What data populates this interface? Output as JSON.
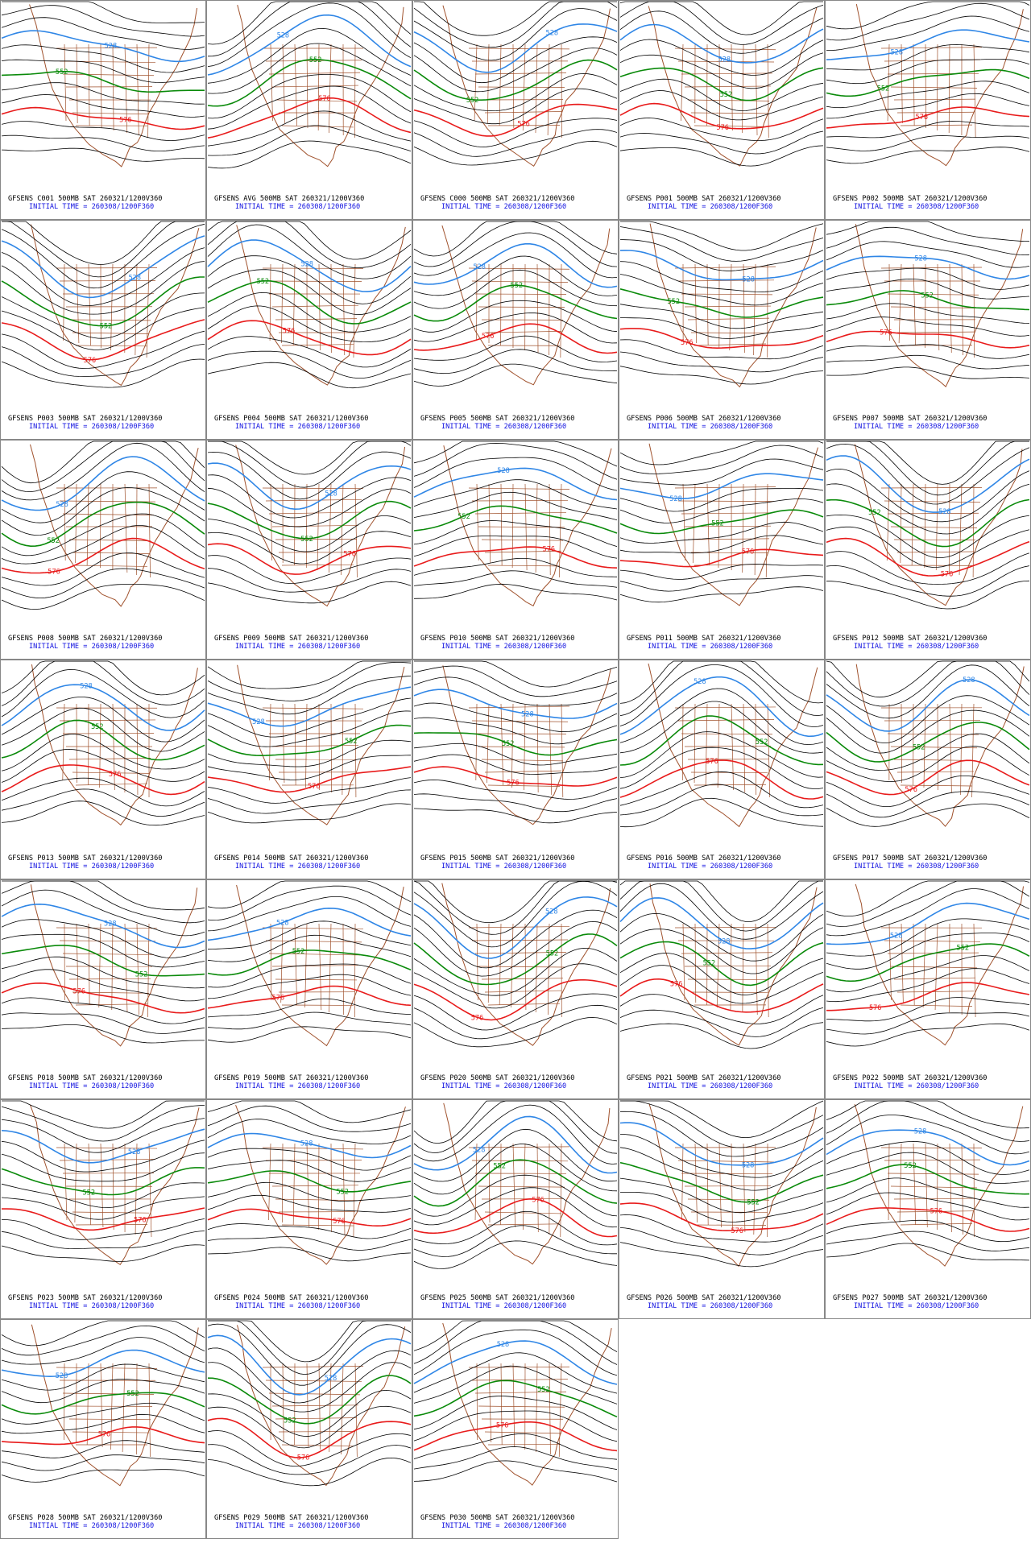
{
  "contour_labels": [
    "528",
    "552",
    "576"
  ],
  "panels": [
    {
      "line1": "GFSENS C001 500MB SAT 260321/1200V360",
      "line2": "INITIAL TIME = 260308/1200F360"
    },
    {
      "line1": "GFSENS AVG 500MB SAT 260321/1200V360",
      "line2": "INITIAL TIME = 260308/1200F360"
    },
    {
      "line1": "GFSENS C000 500MB SAT 260321/1200V360",
      "line2": "INITIAL TIME = 260308/1200F360"
    },
    {
      "line1": "GFSENS P001 500MB SAT 260321/1200V360",
      "line2": "INITIAL TIME = 260308/1200F360"
    },
    {
      "line1": "GFSENS P002 500MB SAT 260321/1200V360",
      "line2": "INITIAL TIME = 260308/1200F360"
    },
    {
      "line1": "GFSENS P003 500MB SAT 260321/1200V360",
      "line2": "INITIAL TIME = 260308/1200F360"
    },
    {
      "line1": "GFSENS P004 500MB SAT 260321/1200V360",
      "line2": "INITIAL TIME = 260308/1200F360"
    },
    {
      "line1": "GFSENS P005 500MB SAT 260321/1200V360",
      "line2": "INITIAL TIME = 260308/1200F360"
    },
    {
      "line1": "GFSENS P006 500MB SAT 260321/1200V360",
      "line2": "INITIAL TIME = 260308/1200F360"
    },
    {
      "line1": "GFSENS P007 500MB SAT 260321/1200V360",
      "line2": "INITIAL TIME = 260308/1200F360"
    },
    {
      "line1": "GFSENS P008 500MB SAT 260321/1200V360",
      "line2": "INITIAL TIME = 260308/1200F360"
    },
    {
      "line1": "GFSENS P009 500MB SAT 260321/1200V360",
      "line2": "INITIAL TIME = 260308/1200F360"
    },
    {
      "line1": "GFSENS P010 500MB SAT 260321/1200V360",
      "line2": "INITIAL TIME = 260308/1200F360"
    },
    {
      "line1": "GFSENS P011 500MB SAT 260321/1200V360",
      "line2": "INITIAL TIME = 260308/1200F360"
    },
    {
      "line1": "GFSENS P012 500MB SAT 260321/1200V360",
      "line2": "INITIAL TIME = 260308/1200F360"
    },
    {
      "line1": "GFSENS P013 500MB SAT 260321/1200V360",
      "line2": "INITIAL TIME = 260308/1200F360"
    },
    {
      "line1": "GFSENS P014 500MB SAT 260321/1200V360",
      "line2": "INITIAL TIME = 260308/1200F360"
    },
    {
      "line1": "GFSENS P015 500MB SAT 260321/1200V360",
      "line2": "INITIAL TIME = 260308/1200F360"
    },
    {
      "line1": "GFSENS P016 500MB SAT 260321/1200V360",
      "line2": "INITIAL TIME = 260308/1200F360"
    },
    {
      "line1": "GFSENS P017 500MB SAT 260321/1200V360",
      "line2": "INITIAL TIME = 260308/1200F360"
    },
    {
      "line1": "GFSENS P018 500MB SAT 260321/1200V360",
      "line2": "INITIAL TIME = 260308/1200F360"
    },
    {
      "line1": "GFSENS P019 500MB SAT 260321/1200V360",
      "line2": "INITIAL TIME = 260308/1200F360"
    },
    {
      "line1": "GFSENS P020 500MB SAT 260321/1200V360",
      "line2": "INITIAL TIME = 260308/1200F360"
    },
    {
      "line1": "GFSENS P021 500MB SAT 260321/1200V360",
      "line2": "INITIAL TIME = 260308/1200F360"
    },
    {
      "line1": "GFSENS P022 500MB SAT 260321/1200V360",
      "line2": "INITIAL TIME = 260308/1200F360"
    },
    {
      "line1": "GFSENS P023 500MB SAT 260321/1200V360",
      "line2": "INITIAL TIME = 260308/1200F360"
    },
    {
      "line1": "GFSENS P024 500MB SAT 260321/1200V360",
      "line2": "INITIAL TIME = 260308/1200F360"
    },
    {
      "line1": "GFSENS P025 500MB SAT 260321/1200V360",
      "line2": "INITIAL TIME = 260308/1200F360"
    },
    {
      "line1": "GFSENS P026 500MB SAT 260321/1200V360",
      "line2": "INITIAL TIME = 260308/1200F360"
    },
    {
      "line1": "GFSENS P027 500MB SAT 260321/1200V360",
      "line2": "INITIAL TIME = 260308/1200F360"
    },
    {
      "line1": "GFSENS P028 500MB SAT 260321/1200V360",
      "line2": "INITIAL TIME = 260308/1200F360"
    },
    {
      "line1": "GFSENS P029 500MB SAT 260321/1200V360",
      "line2": "INITIAL TIME = 260308/1200F360"
    },
    {
      "line1": "GFSENS P030 500MB SAT 260321/1200V360",
      "line2": "INITIAL TIME = 260308/1200F360"
    }
  ]
}
